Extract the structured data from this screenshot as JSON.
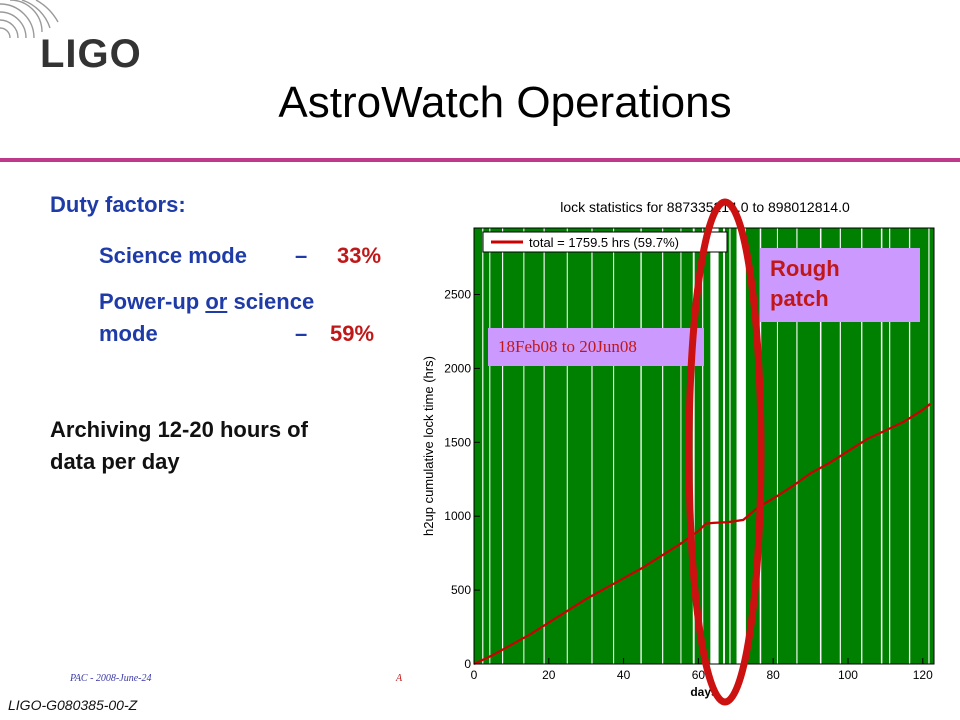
{
  "logo": {
    "text": "LIGO"
  },
  "title": "AstroWatch Operations",
  "duty": {
    "heading": "Duty factors:",
    "science_label": "Science mode",
    "science_dash": "–",
    "science_value": "33%",
    "power_line1_a": "Power-up ",
    "power_line1_or": "or",
    "power_line1_b": " science",
    "power_line2": "mode",
    "power_dash": "–",
    "power_value": "59%"
  },
  "archiving": {
    "line1": "Archiving 12-20 hours of",
    "line2": "data per day"
  },
  "footer": {
    "left": "PAC - 2008-June-24",
    "mid": "A",
    "id": "LIGO-G080385-00-Z"
  },
  "annotations": {
    "rough1": "Rough",
    "rough2": "patch",
    "dates": "18Feb08 to 20Jun08"
  },
  "colors": {
    "accent": "#c03a8c",
    "plot_bg": "#008000",
    "line": "#cc0000",
    "ellipse": "#cc1111",
    "callout": "#cc99ff"
  },
  "chart_data": {
    "type": "line",
    "title": "lock statistics for 887335214.0 to 898012814.0",
    "xlabel": "days",
    "ylabel": "h2up cumulative lock time (hrs)",
    "xlim": [
      0,
      123
    ],
    "ylim": [
      0,
      2950
    ],
    "xticks": [
      0,
      20,
      40,
      60,
      80,
      100,
      120
    ],
    "yticks": [
      0,
      500,
      1000,
      1500,
      2000,
      2500
    ],
    "legend": "total = 1759.5 hrs (59.7%)",
    "series": [
      {
        "name": "total = 1759.5 hrs (59.7%)",
        "x": [
          0,
          5,
          10,
          15,
          20,
          25,
          30,
          35,
          40,
          45,
          50,
          55,
          60,
          62,
          64,
          68,
          72,
          76,
          80,
          85,
          90,
          95,
          100,
          105,
          110,
          115,
          120,
          122
        ],
        "y": [
          0,
          60,
          130,
          200,
          280,
          360,
          440,
          510,
          580,
          650,
          730,
          810,
          900,
          950,
          955,
          960,
          975,
          1060,
          1120,
          1200,
          1290,
          1360,
          1440,
          1520,
          1580,
          1640,
          1720,
          1760
        ]
      }
    ]
  }
}
